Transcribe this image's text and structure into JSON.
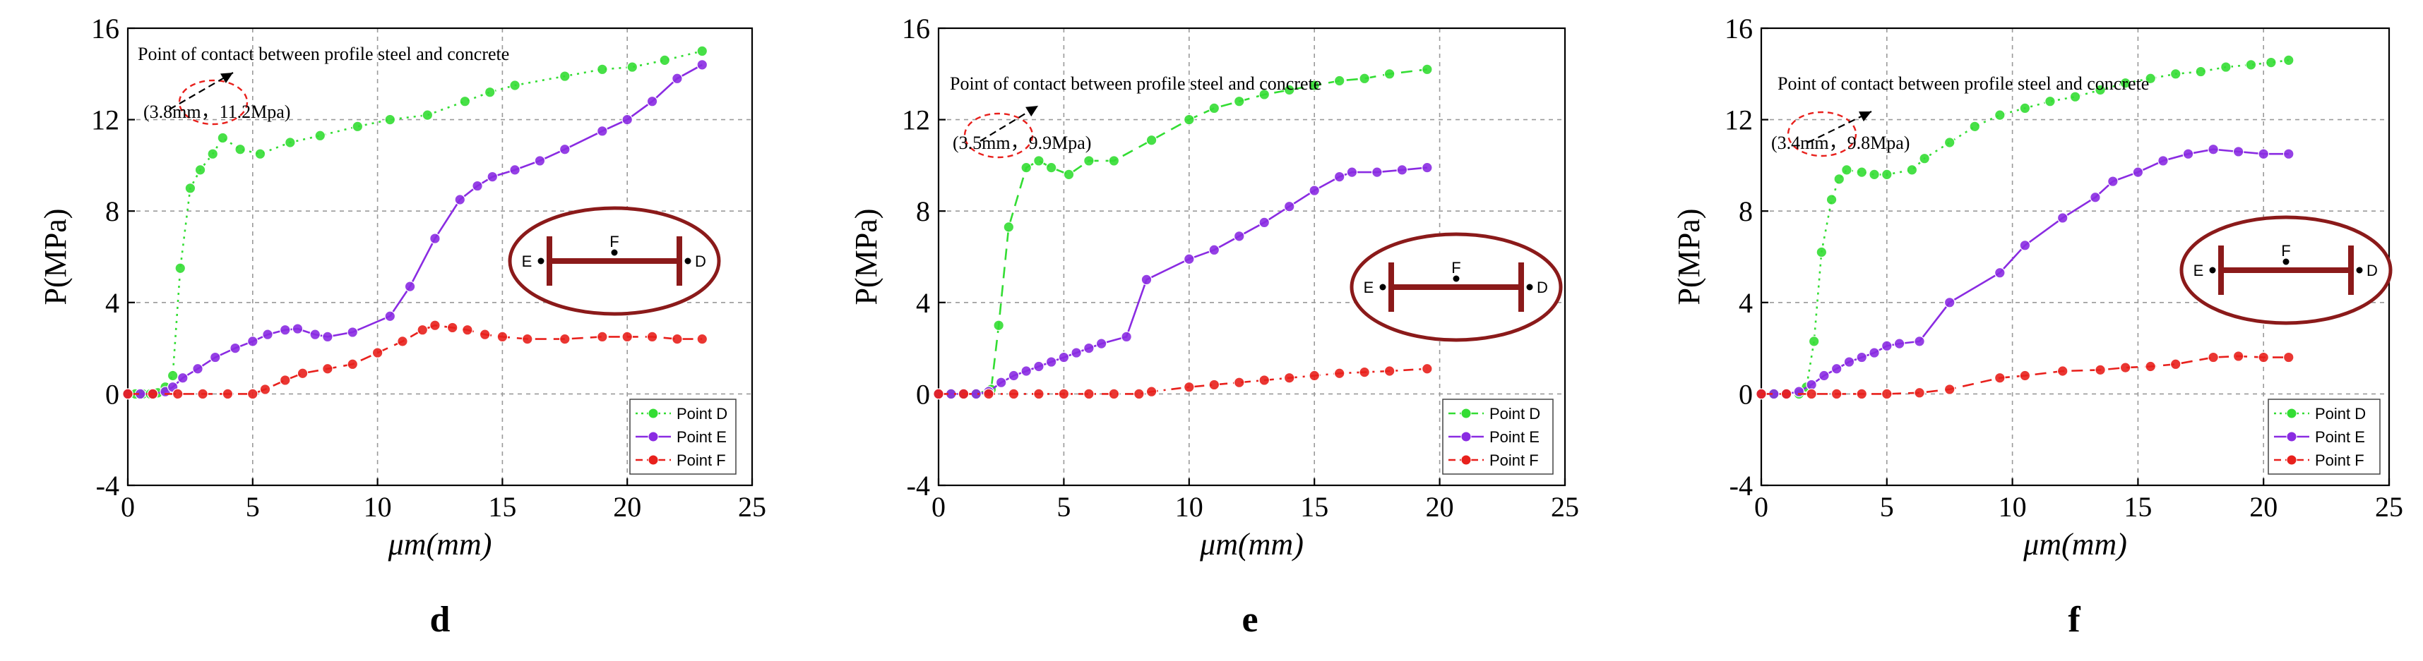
{
  "colors": {
    "D": "#33dd33",
    "E": "#8a2be2",
    "F": "#e8201c",
    "inset": "#8b1a1a",
    "ellipse_mark": "#e8201c"
  },
  "chart_data": [
    {
      "id": "d",
      "type": "line",
      "panel_label": "d",
      "xlabel": "μm(mm)",
      "ylabel": "P(MPa)",
      "xlim": [
        0,
        25
      ],
      "ylim": [
        -4,
        16
      ],
      "xticks": [
        0,
        5,
        10,
        15,
        20,
        25
      ],
      "yticks": [
        -4,
        0,
        4,
        8,
        12,
        16
      ],
      "x_tick_labels": [
        "0",
        "5",
        "10",
        "15",
        "20",
        "25"
      ],
      "y_tick_labels": [
        "-4",
        "0",
        "4",
        "8",
        "12",
        "16"
      ],
      "annotation": "Point of contact between profile steel and concrete",
      "point_label": "(3.8mm，11.2Mpa)",
      "contact_point": [
        3.8,
        11.2
      ],
      "inset_labels": {
        "E": "E",
        "F": "F",
        "D": "D"
      },
      "series": [
        {
          "key": "D",
          "name": "Point D",
          "style": "dotted",
          "points": [
            [
              0,
              0
            ],
            [
              0.3,
              0
            ],
            [
              0.6,
              0
            ],
            [
              0.9,
              0
            ],
            [
              1.2,
              0.05
            ],
            [
              1.5,
              0.3
            ],
            [
              1.8,
              0.8
            ],
            [
              2.1,
              5.5
            ],
            [
              2.5,
              9.0
            ],
            [
              2.9,
              9.8
            ],
            [
              3.4,
              10.5
            ],
            [
              3.8,
              11.2
            ],
            [
              4.5,
              10.7
            ],
            [
              5.3,
              10.5
            ],
            [
              6.5,
              11.0
            ],
            [
              7.7,
              11.3
            ],
            [
              9.2,
              11.7
            ],
            [
              10.5,
              12.0
            ],
            [
              12,
              12.2
            ],
            [
              13.5,
              12.8
            ],
            [
              14.5,
              13.2
            ],
            [
              15.5,
              13.5
            ],
            [
              17.5,
              13.9
            ],
            [
              19,
              14.2
            ],
            [
              20.2,
              14.3
            ],
            [
              21.5,
              14.6
            ],
            [
              23,
              15.0
            ]
          ]
        },
        {
          "key": "E",
          "name": "Point E",
          "style": "solid",
          "points": [
            [
              0,
              0
            ],
            [
              0.5,
              0
            ],
            [
              1,
              0
            ],
            [
              1.5,
              0.1
            ],
            [
              1.8,
              0.3
            ],
            [
              2.2,
              0.7
            ],
            [
              2.8,
              1.1
            ],
            [
              3.5,
              1.6
            ],
            [
              4.3,
              2.0
            ],
            [
              5,
              2.3
            ],
            [
              5.6,
              2.6
            ],
            [
              6.3,
              2.8
            ],
            [
              6.8,
              2.85
            ],
            [
              7.5,
              2.6
            ],
            [
              8,
              2.5
            ],
            [
              9,
              2.7
            ],
            [
              10.5,
              3.4
            ],
            [
              11.3,
              4.7
            ],
            [
              12.3,
              6.8
            ],
            [
              13.3,
              8.5
            ],
            [
              14.0,
              9.1
            ],
            [
              14.6,
              9.5
            ],
            [
              15.5,
              9.8
            ],
            [
              16.5,
              10.2
            ],
            [
              17.5,
              10.7
            ],
            [
              19,
              11.5
            ],
            [
              20,
              12.0
            ],
            [
              21,
              12.8
            ],
            [
              22,
              13.8
            ],
            [
              23,
              14.4
            ]
          ]
        },
        {
          "key": "F",
          "name": "Point F",
          "style": "dashed",
          "points": [
            [
              0,
              0
            ],
            [
              1,
              0
            ],
            [
              2,
              0
            ],
            [
              3,
              0
            ],
            [
              4,
              0
            ],
            [
              5,
              0
            ],
            [
              5.5,
              0.2
            ],
            [
              6.3,
              0.6
            ],
            [
              7,
              0.9
            ],
            [
              8,
              1.1
            ],
            [
              9,
              1.3
            ],
            [
              10,
              1.8
            ],
            [
              11,
              2.3
            ],
            [
              11.8,
              2.8
            ],
            [
              12.3,
              3.0
            ],
            [
              13,
              2.9
            ],
            [
              13.6,
              2.8
            ],
            [
              14.3,
              2.6
            ],
            [
              15,
              2.5
            ],
            [
              16,
              2.4
            ],
            [
              17.5,
              2.4
            ],
            [
              19,
              2.5
            ],
            [
              20,
              2.5
            ],
            [
              21,
              2.5
            ],
            [
              22,
              2.4
            ],
            [
              23,
              2.4
            ]
          ]
        }
      ]
    },
    {
      "id": "e",
      "type": "line",
      "panel_label": "e",
      "xlabel": "μm(mm)",
      "ylabel": "P(MPa)",
      "xlim": [
        0,
        25
      ],
      "ylim": [
        -4,
        16
      ],
      "xticks": [
        0,
        5,
        10,
        15,
        20,
        25
      ],
      "yticks": [
        -4,
        0,
        4,
        8,
        12,
        16
      ],
      "x_tick_labels": [
        "0",
        "5",
        "10",
        "15",
        "20",
        "25"
      ],
      "y_tick_labels": [
        "-4",
        "0",
        "4",
        "8",
        "12",
        "16"
      ],
      "annotation": "Point of contact between profile steel and concrete",
      "point_label": "(3.5mm，9.9Mpa)",
      "contact_point": [
        3.5,
        9.9
      ],
      "inset_labels": {
        "E": "E",
        "F": "F",
        "D": "D"
      },
      "series": [
        {
          "key": "D",
          "name": "Point D",
          "style": "dashed",
          "points": [
            [
              0,
              0
            ],
            [
              0.5,
              0
            ],
            [
              1,
              0
            ],
            [
              1.5,
              0
            ],
            [
              2.1,
              0.2
            ],
            [
              2.4,
              3.0
            ],
            [
              2.8,
              7.3
            ],
            [
              3.5,
              9.9
            ],
            [
              4.0,
              10.2
            ],
            [
              4.5,
              9.9
            ],
            [
              5.2,
              9.6
            ],
            [
              6.0,
              10.2
            ],
            [
              7.0,
              10.2
            ],
            [
              8.5,
              11.1
            ],
            [
              10,
              12.0
            ],
            [
              11,
              12.5
            ],
            [
              12,
              12.8
            ],
            [
              13,
              13.1
            ],
            [
              14,
              13.3
            ],
            [
              15,
              13.5
            ],
            [
              16,
              13.7
            ],
            [
              17,
              13.8
            ],
            [
              18,
              14.0
            ],
            [
              19.5,
              14.2
            ]
          ]
        },
        {
          "key": "E",
          "name": "Point E",
          "style": "solid",
          "points": [
            [
              0,
              0
            ],
            [
              0.5,
              0
            ],
            [
              1,
              0
            ],
            [
              1.5,
              0
            ],
            [
              2,
              0.1
            ],
            [
              2.5,
              0.5
            ],
            [
              3,
              0.8
            ],
            [
              3.5,
              1.0
            ],
            [
              4,
              1.2
            ],
            [
              4.5,
              1.4
            ],
            [
              5,
              1.6
            ],
            [
              5.5,
              1.8
            ],
            [
              6,
              2.0
            ],
            [
              6.5,
              2.2
            ],
            [
              7.5,
              2.5
            ],
            [
              8.3,
              5.0
            ],
            [
              10,
              5.9
            ],
            [
              11,
              6.3
            ],
            [
              12,
              6.9
            ],
            [
              13,
              7.5
            ],
            [
              14,
              8.2
            ],
            [
              15,
              8.9
            ],
            [
              16,
              9.5
            ],
            [
              16.5,
              9.7
            ],
            [
              17.5,
              9.7
            ],
            [
              18.5,
              9.8
            ],
            [
              19.5,
              9.9
            ]
          ]
        },
        {
          "key": "F",
          "name": "Point F",
          "style": "dashdot",
          "points": [
            [
              0,
              0
            ],
            [
              1,
              0
            ],
            [
              2,
              0
            ],
            [
              3,
              0
            ],
            [
              4,
              0
            ],
            [
              5,
              0
            ],
            [
              6,
              0
            ],
            [
              7,
              0
            ],
            [
              8,
              0
            ],
            [
              8.5,
              0.1
            ],
            [
              10,
              0.3
            ],
            [
              11,
              0.4
            ],
            [
              12,
              0.5
            ],
            [
              13,
              0.6
            ],
            [
              14,
              0.7
            ],
            [
              15,
              0.8
            ],
            [
              16,
              0.9
            ],
            [
              17,
              0.95
            ],
            [
              18,
              1.0
            ],
            [
              19.5,
              1.1
            ]
          ]
        }
      ]
    },
    {
      "id": "f",
      "type": "line",
      "panel_label": "f",
      "xlabel": "μm(mm)",
      "ylabel": "P(MPa)",
      "xlim": [
        0,
        25
      ],
      "ylim": [
        -4,
        16
      ],
      "xticks": [
        0,
        5,
        10,
        15,
        20,
        25
      ],
      "yticks": [
        -4,
        0,
        4,
        8,
        12,
        16
      ],
      "x_tick_labels": [
        "0",
        "5",
        "10",
        "15",
        "20",
        "25"
      ],
      "y_tick_labels": [
        "-4",
        "0",
        "4",
        "8",
        "12",
        "16"
      ],
      "annotation": "Point of contact between profile steel and concrete",
      "point_label": "(3.4mm，9.8Mpa)",
      "contact_point": [
        3.4,
        9.8
      ],
      "inset_labels": {
        "E": "E",
        "F": "F",
        "D": "D"
      },
      "series": [
        {
          "key": "D",
          "name": "Point D",
          "style": "dotted",
          "points": [
            [
              0,
              0
            ],
            [
              0.5,
              0
            ],
            [
              1,
              0
            ],
            [
              1.5,
              0
            ],
            [
              1.8,
              0.3
            ],
            [
              2.1,
              2.3
            ],
            [
              2.4,
              6.2
            ],
            [
              2.8,
              8.5
            ],
            [
              3.1,
              9.4
            ],
            [
              3.4,
              9.8
            ],
            [
              4,
              9.7
            ],
            [
              4.5,
              9.6
            ],
            [
              5,
              9.6
            ],
            [
              6,
              9.8
            ],
            [
              6.5,
              10.3
            ],
            [
              7.5,
              11.0
            ],
            [
              8.5,
              11.7
            ],
            [
              9.5,
              12.2
            ],
            [
              10.5,
              12.5
            ],
            [
              11.5,
              12.8
            ],
            [
              12.5,
              13.0
            ],
            [
              13.5,
              13.3
            ],
            [
              14.5,
              13.6
            ],
            [
              15.5,
              13.8
            ],
            [
              16.5,
              14.0
            ],
            [
              17.5,
              14.1
            ],
            [
              18.5,
              14.3
            ],
            [
              19.5,
              14.4
            ],
            [
              20.3,
              14.5
            ],
            [
              21,
              14.6
            ]
          ]
        },
        {
          "key": "E",
          "name": "Point E",
          "style": "solid",
          "points": [
            [
              0,
              0
            ],
            [
              0.5,
              0
            ],
            [
              1,
              0
            ],
            [
              1.5,
              0.1
            ],
            [
              2,
              0.4
            ],
            [
              2.5,
              0.8
            ],
            [
              3,
              1.1
            ],
            [
              3.5,
              1.4
            ],
            [
              4,
              1.6
            ],
            [
              4.5,
              1.8
            ],
            [
              5,
              2.1
            ],
            [
              5.5,
              2.2
            ],
            [
              6.3,
              2.3
            ],
            [
              7.5,
              4.0
            ],
            [
              9.5,
              5.3
            ],
            [
              10.5,
              6.5
            ],
            [
              12,
              7.7
            ],
            [
              13.3,
              8.6
            ],
            [
              14,
              9.3
            ],
            [
              15,
              9.7
            ],
            [
              16,
              10.2
            ],
            [
              17,
              10.5
            ],
            [
              18,
              10.7
            ],
            [
              19,
              10.6
            ],
            [
              20,
              10.5
            ],
            [
              21,
              10.5
            ]
          ]
        },
        {
          "key": "F",
          "name": "Point F",
          "style": "dashed",
          "points": [
            [
              0,
              0
            ],
            [
              1,
              0
            ],
            [
              2,
              0
            ],
            [
              3,
              0
            ],
            [
              4,
              0
            ],
            [
              5,
              0
            ],
            [
              6.3,
              0.05
            ],
            [
              7.5,
              0.2
            ],
            [
              9.5,
              0.7
            ],
            [
              10.5,
              0.8
            ],
            [
              12,
              1.0
            ],
            [
              13.5,
              1.05
            ],
            [
              14.5,
              1.15
            ],
            [
              15.5,
              1.2
            ],
            [
              16.5,
              1.3
            ],
            [
              18,
              1.6
            ],
            [
              19,
              1.65
            ],
            [
              20,
              1.6
            ],
            [
              21,
              1.6
            ]
          ]
        }
      ]
    }
  ]
}
